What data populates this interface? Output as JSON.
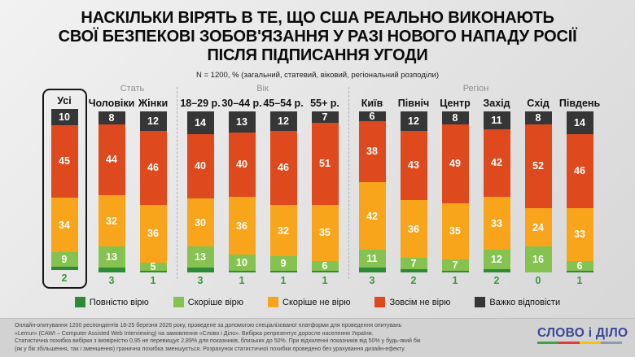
{
  "header": {
    "title_lines": [
      "НАСКІЛЬКИ ВІРЯТЬ В ТЕ, ЩО США РЕАЛЬНО ВИКОНАЮТЬ",
      "СВОЇ БЕЗПЕКОВІ ЗОБОВ'ЯЗАННЯ У РАЗІ НОВОГО НАПАДУ РОСІЇ",
      "ПІСЛЯ ПІДПИСАННЯ УГОДИ"
    ],
    "subtitle": "N = 1200, % (загальний, статевий, віковий, регіональний розподіли)"
  },
  "chart_data": {
    "type": "bar",
    "stacked": true,
    "units": "%",
    "total_per_column": 100,
    "series_order_top_to_bottom": [
      "Важко відповісти",
      "Зовсім не вірю",
      "Скоріше не вірю",
      "Скоріше вірю",
      "Повністю вірю"
    ],
    "colors": {
      "Повністю вірю": "#2e8b35",
      "Скоріше вірю": "#85c24f",
      "Скоріше не вірю": "#f9a51b",
      "Зовсім не вірю": "#de491d",
      "Важко відповісти": "#363636"
    },
    "below_bar_series": "Повністю вірю",
    "below_value_color": "#38983d",
    "legend": [
      "Повністю вірю",
      "Скоріше вірю",
      "Скоріше не вірю",
      "Зовсім не вірю",
      "Важко відповісти"
    ],
    "groups": [
      {
        "label": "",
        "highlighted": true,
        "columns": [
          {
            "label": "Усі",
            "values": [
              10,
              45,
              34,
              9,
              2
            ]
          }
        ]
      },
      {
        "label": "Стать",
        "highlighted": false,
        "columns": [
          {
            "label": "Чоловіки",
            "values": [
              8,
              44,
              32,
              13,
              3
            ]
          },
          {
            "label": "Жінки",
            "values": [
              12,
              46,
              36,
              5,
              1
            ]
          }
        ]
      },
      {
        "label": "Вік",
        "highlighted": false,
        "columns": [
          {
            "label": "18–29 р.",
            "values": [
              14,
              40,
              30,
              13,
              3
            ]
          },
          {
            "label": "30–44 р.",
            "values": [
              13,
              40,
              36,
              10,
              1
            ]
          },
          {
            "label": "45–54 р.",
            "values": [
              12,
              46,
              32,
              9,
              1
            ]
          },
          {
            "label": "55+ р.",
            "values": [
              7,
              51,
              35,
              6,
              1
            ]
          }
        ]
      },
      {
        "label": "Регіон",
        "highlighted": false,
        "columns": [
          {
            "label": "Київ",
            "values": [
              6,
              38,
              42,
              11,
              3
            ]
          },
          {
            "label": "Північ",
            "values": [
              12,
              43,
              36,
              7,
              2
            ]
          },
          {
            "label": "Центр",
            "values": [
              8,
              49,
              35,
              7,
              1
            ]
          },
          {
            "label": "Захід",
            "values": [
              11,
              42,
              33,
              12,
              2
            ]
          },
          {
            "label": "Схід",
            "values": [
              8,
              52,
              24,
              16,
              0
            ]
          },
          {
            "label": "Південь",
            "values": [
              14,
              46,
              33,
              6,
              1
            ]
          }
        ]
      }
    ]
  },
  "footer": {
    "lines": [
      "Онлайн-опитування 1200 респондентів 18-25 березня 2026 року, проведене за допомогою спеціалізованої платформи для проведення опитувань",
      "«Lemur» (CAWI – Computer Assisted Web Interviewing) на замовлення «Слово і Діло». Вибірка репрезентує доросле населення України.",
      "Статистична похибка вибірки з імовірністю 0,95 не перевищує 2,89% для показників, близьких до 50%. При відхиленні показників від 50% у будь-який бік",
      "(як у бік збільшення, так і зменшення) гранична похибка зменшується. Розрахунок статистичної похибки проведено без урахування дизайн-ефекту."
    ],
    "logo": {
      "text": "СЛОВО і ДІЛО",
      "color": "#3a4797",
      "underline_colors": [
        "#43a047",
        "#e53935",
        "#f2c118",
        "#8b9bb0"
      ]
    }
  }
}
